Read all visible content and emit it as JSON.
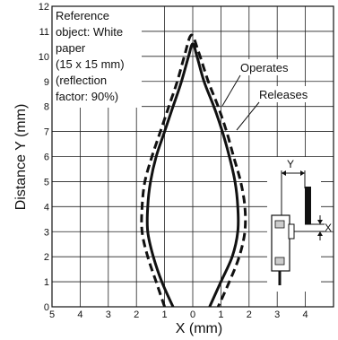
{
  "chart_data": {
    "type": "line",
    "xlabel": "X (mm)",
    "ylabel": "Distance Y (mm)",
    "xlim": [
      -5,
      5
    ],
    "ylim": [
      0,
      12
    ],
    "x_ticks": [
      "5",
      "4",
      "3",
      "2",
      "1",
      "0",
      "1",
      "2",
      "3",
      "4"
    ],
    "y_ticks": [
      "0",
      "1",
      "2",
      "3",
      "4",
      "5",
      "6",
      "7",
      "8",
      "9",
      "10",
      "11",
      "12"
    ],
    "grid": true,
    "annotation_lines": [
      "Reference",
      "object: White",
      "paper",
      "(15 x 15 mm)",
      "(reflection",
      "factor: 90%)"
    ],
    "series": [
      {
        "name": "Operates",
        "style": "solid",
        "points": [
          [
            -0.7,
            0
          ],
          [
            -1.1,
            1
          ],
          [
            -1.4,
            2
          ],
          [
            -1.6,
            3
          ],
          [
            -1.6,
            4
          ],
          [
            -1.5,
            5
          ],
          [
            -1.3,
            6
          ],
          [
            -1.0,
            7
          ],
          [
            -0.7,
            8
          ],
          [
            -0.4,
            9
          ],
          [
            -0.15,
            10
          ],
          [
            0.0,
            10.5
          ],
          [
            0.15,
            10
          ],
          [
            0.4,
            9
          ],
          [
            0.75,
            8
          ],
          [
            1.05,
            7
          ],
          [
            1.3,
            6
          ],
          [
            1.5,
            5
          ],
          [
            1.6,
            4
          ],
          [
            1.6,
            3
          ],
          [
            1.4,
            2
          ],
          [
            1.0,
            1
          ],
          [
            0.6,
            0
          ]
        ]
      },
      {
        "name": "Releases",
        "style": "dashed",
        "points": [
          [
            -1.0,
            0
          ],
          [
            -1.3,
            1
          ],
          [
            -1.6,
            2
          ],
          [
            -1.8,
            3
          ],
          [
            -1.8,
            4
          ],
          [
            -1.7,
            5
          ],
          [
            -1.45,
            6
          ],
          [
            -1.15,
            7
          ],
          [
            -0.85,
            8
          ],
          [
            -0.55,
            9
          ],
          [
            -0.3,
            10
          ],
          [
            -0.05,
            10.85
          ],
          [
            0.2,
            10.2
          ],
          [
            0.55,
            9
          ],
          [
            0.9,
            8
          ],
          [
            1.2,
            7
          ],
          [
            1.45,
            6
          ],
          [
            1.7,
            5
          ],
          [
            1.85,
            4
          ],
          [
            1.85,
            3
          ],
          [
            1.65,
            2
          ],
          [
            1.3,
            1
          ],
          [
            0.9,
            0
          ]
        ]
      }
    ],
    "inset_labels": {
      "y": "Y",
      "x": "X"
    }
  }
}
